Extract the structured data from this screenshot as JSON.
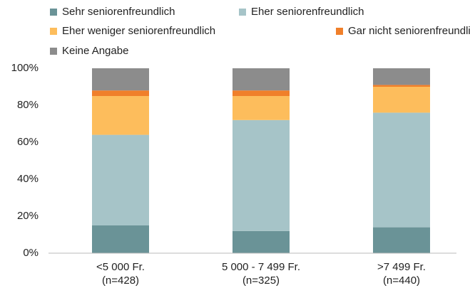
{
  "chart_data": {
    "type": "stacked_bar",
    "categories": [
      "<5 000 Fr.\n(n=428)",
      "5 000 - 7 499 Fr.\n(n=325)",
      ">7 499 Fr.\n(n=440)"
    ],
    "series": [
      {
        "name": "Sehr seniorenfreundlich",
        "color": "#6a9397",
        "values": [
          15,
          12,
          14
        ]
      },
      {
        "name": "Eher seniorenfreundlich",
        "color": "#a6c4c8",
        "values": [
          49,
          60,
          62
        ]
      },
      {
        "name": "Eher weniger seniorenfreundlich",
        "color": "#fdbd5c",
        "values": [
          21,
          13,
          14
        ]
      },
      {
        "name": "Gar nicht seniorenfreundlich",
        "color": "#f07f2a",
        "values": [
          3,
          3,
          1
        ]
      },
      {
        "name": "Keine Angabe",
        "color": "#8c8c8c",
        "values": [
          12,
          12,
          9
        ]
      }
    ],
    "ylim": [
      0,
      100
    ],
    "yticks": [
      {
        "value": 0,
        "label": "0%"
      },
      {
        "value": 20,
        "label": "20%"
      },
      {
        "value": 40,
        "label": "40%"
      },
      {
        "value": 60,
        "label": "60%"
      },
      {
        "value": 80,
        "label": "80%"
      },
      {
        "value": 100,
        "label": "100%"
      }
    ],
    "grid": false
  }
}
